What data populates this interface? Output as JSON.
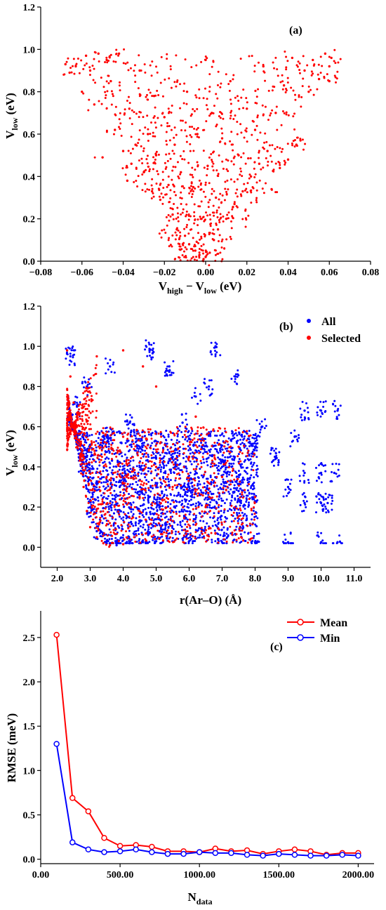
{
  "chart_data": [
    {
      "type": "scatter",
      "panel_label": "(a)",
      "xlabel": {
        "main": "V",
        "sub1": "high",
        "mid": " − V",
        "sub2": "low",
        "unit": " (eV)"
      },
      "ylabel": {
        "main": "V",
        "sub": "low",
        "unit": " (eV)"
      },
      "xlim": [
        -0.08,
        0.08
      ],
      "ylim": [
        0.0,
        1.2
      ],
      "xticks": [
        -0.08,
        -0.06,
        -0.04,
        -0.02,
        0.0,
        0.02,
        0.04,
        0.06,
        0.08
      ],
      "xtick_labels": [
        "−0.08",
        "−0.06",
        "−0.04",
        "−0.02",
        "0.00",
        "0.02",
        "0.04",
        "0.06",
        "0.08"
      ],
      "yticks": [
        0.0,
        0.2,
        0.4,
        0.6,
        0.8,
        1.0,
        1.2
      ],
      "ytick_labels": [
        "0.0",
        "0.2",
        "0.4",
        "0.6",
        "0.8",
        "1.0",
        "1.2"
      ],
      "series": [
        {
          "color": "#ff0000",
          "points": [
            [
              -0.068,
              0.93
            ],
            [
              -0.066,
              0.89
            ],
            [
              -0.063,
              0.92
            ],
            [
              -0.06,
              0.8
            ],
            [
              -0.058,
              0.97
            ],
            [
              -0.056,
              0.9
            ],
            [
              -0.054,
              0.74
            ],
            [
              -0.052,
              0.98
            ],
            [
              -0.05,
              0.49
            ],
            [
              -0.048,
              0.95
            ],
            [
              -0.046,
              0.85
            ],
            [
              -0.044,
              0.62
            ],
            [
              -0.042,
              0.98
            ],
            [
              -0.04,
              0.52
            ],
            [
              -0.038,
              0.38
            ],
            [
              -0.037,
              0.72
            ],
            [
              -0.036,
              0.46
            ],
            [
              -0.034,
              0.55
            ],
            [
              -0.032,
              0.9
            ],
            [
              -0.03,
              0.42
            ],
            [
              -0.028,
              0.6
            ],
            [
              -0.026,
              0.33
            ],
            [
              -0.025,
              0.78
            ],
            [
              -0.024,
              0.5
            ],
            [
              -0.022,
              0.29
            ],
            [
              -0.02,
              0.68
            ],
            [
              -0.018,
              0.36
            ],
            [
              -0.016,
              0.22
            ],
            [
              -0.015,
              0.55
            ],
            [
              -0.014,
              0.15
            ],
            [
              -0.012,
              0.42
            ],
            [
              -0.01,
              0.12
            ],
            [
              -0.009,
              0.8
            ],
            [
              -0.008,
              0.08
            ],
            [
              -0.006,
              0.35
            ],
            [
              -0.005,
              0.05
            ],
            [
              -0.004,
              0.6
            ],
            [
              -0.003,
              0.03
            ],
            [
              -0.002,
              0.2
            ],
            [
              -0.001,
              0.01
            ],
            [
              0.0,
              0.95
            ],
            [
              0.0,
              0.02
            ],
            [
              0.001,
              0.45
            ],
            [
              0.002,
              0.04
            ],
            [
              0.003,
              0.7
            ],
            [
              0.004,
              0.1
            ],
            [
              0.005,
              0.3
            ],
            [
              0.006,
              0.15
            ],
            [
              0.008,
              0.58
            ],
            [
              0.01,
              0.2
            ],
            [
              0.012,
              0.85
            ],
            [
              0.014,
              0.27
            ],
            [
              0.016,
              0.5
            ],
            [
              0.018,
              0.33
            ],
            [
              0.02,
              0.72
            ],
            [
              0.022,
              0.4
            ],
            [
              0.024,
              0.62
            ],
            [
              0.026,
              0.46
            ],
            [
              0.028,
              0.92
            ],
            [
              0.03,
              0.52
            ],
            [
              0.032,
              0.34
            ],
            [
              0.034,
              0.7
            ],
            [
              0.036,
              0.44
            ],
            [
              0.038,
              0.83
            ],
            [
              0.04,
              0.48
            ],
            [
              0.042,
              0.96
            ],
            [
              0.044,
              0.55
            ],
            [
              0.046,
              0.57
            ],
            [
              0.048,
              0.9
            ],
            [
              0.05,
              0.8
            ],
            [
              0.052,
              0.95
            ],
            [
              0.055,
              0.86
            ],
            [
              0.058,
              0.98
            ],
            [
              0.06,
              0.92
            ],
            [
              0.061,
              0.96
            ],
            [
              0.06,
              0.85
            ]
          ]
        }
      ]
    },
    {
      "type": "scatter",
      "panel_label": "(b)",
      "xlabel": {
        "text": "r(Ar–O) (Å)"
      },
      "ylabel": {
        "main": "V",
        "sub": "low",
        "unit": " (eV)"
      },
      "xlim": [
        1.5,
        11.5
      ],
      "ylim": [
        -0.1,
        1.2
      ],
      "xticks": [
        2.0,
        3.0,
        4.0,
        5.0,
        6.0,
        7.0,
        8.0,
        9.0,
        10.0,
        11.0
      ],
      "xtick_labels": [
        "2.0",
        "3.0",
        "4.0",
        "5.0",
        "6.0",
        "7.0",
        "8.0",
        "9.0",
        "10.0",
        "11.0"
      ],
      "yticks": [
        0.0,
        0.2,
        0.4,
        0.6,
        0.8,
        1.0,
        1.2
      ],
      "ytick_labels": [
        "0.0",
        "0.2",
        "0.4",
        "0.6",
        "0.8",
        "1.0",
        "1.2"
      ],
      "legend_position": "top-right",
      "series": [
        {
          "name": "All",
          "color": "#0000ff",
          "points": [
            [
              2.4,
              0.95
            ],
            [
              2.6,
              0.7
            ],
            [
              2.8,
              0.42
            ],
            [
              3.0,
              0.2
            ],
            [
              3.2,
              0.08
            ],
            [
              3.5,
              0.03
            ],
            [
              3.8,
              0.01
            ],
            [
              4.2,
              0.02
            ],
            [
              4.6,
              0.025
            ],
            [
              5.0,
              0.03
            ],
            [
              6.0,
              0.03
            ],
            [
              7.0,
              0.025
            ],
            [
              8.0,
              0.025
            ],
            [
              9.0,
              0.025
            ],
            [
              10.0,
              0.025
            ],
            [
              10.5,
              0.025
            ],
            [
              3.5,
              0.55
            ],
            [
              4.0,
              0.35
            ],
            [
              4.5,
              0.5
            ],
            [
              5.0,
              0.22
            ],
            [
              5.5,
              0.45
            ],
            [
              6.0,
              0.3
            ],
            [
              6.5,
              0.52
            ],
            [
              7.0,
              0.4
            ],
            [
              7.5,
              0.28
            ],
            [
              8.0,
              0.5
            ],
            [
              6.8,
              1.0
            ],
            [
              6.6,
              0.8
            ],
            [
              7.4,
              0.85
            ],
            [
              8.2,
              0.6
            ],
            [
              8.6,
              0.45
            ],
            [
              9.0,
              0.3
            ],
            [
              9.2,
              0.55
            ],
            [
              9.5,
              0.68
            ],
            [
              10.0,
              0.68
            ],
            [
              10.5,
              0.68
            ],
            [
              9.5,
              0.37
            ],
            [
              10.0,
              0.37
            ],
            [
              10.4,
              0.37
            ],
            [
              9.5,
              0.22
            ],
            [
              10.0,
              0.22
            ],
            [
              10.2,
              0.22
            ],
            [
              4.8,
              0.98
            ],
            [
              5.4,
              0.9
            ],
            [
              6.2,
              0.75
            ],
            [
              5.8,
              0.62
            ],
            [
              4.2,
              0.62
            ],
            [
              3.6,
              0.9
            ],
            [
              2.9,
              0.8
            ]
          ]
        },
        {
          "name": "Selected",
          "color": "#ff0000",
          "points": [
            [
              2.3,
              0.98
            ],
            [
              2.4,
              0.85
            ],
            [
              2.5,
              0.72
            ],
            [
              2.6,
              0.6
            ],
            [
              2.7,
              0.45
            ],
            [
              2.8,
              0.3
            ],
            [
              2.9,
              0.18
            ],
            [
              3.0,
              0.1
            ],
            [
              3.2,
              0.05
            ],
            [
              3.4,
              0.02
            ],
            [
              3.6,
              0.01
            ],
            [
              4.0,
              0.015
            ],
            [
              3.0,
              0.5
            ],
            [
              3.5,
              0.35
            ],
            [
              4.0,
              0.55
            ],
            [
              4.5,
              0.25
            ],
            [
              5.0,
              0.4
            ],
            [
              5.5,
              0.3
            ],
            [
              6.0,
              0.45
            ],
            [
              6.5,
              0.2
            ],
            [
              7.0,
              0.35
            ],
            [
              7.5,
              0.5
            ],
            [
              8.0,
              0.25
            ],
            [
              3.2,
              0.95
            ],
            [
              4.0,
              0.98
            ],
            [
              4.6,
              0.9
            ],
            [
              5.0,
              0.8
            ],
            [
              6.2,
              0.65
            ]
          ]
        }
      ]
    },
    {
      "type": "line",
      "panel_label": "(c)",
      "xlabel": {
        "main": "N",
        "sub": "data"
      },
      "ylabel": {
        "text": "RMSE (meV)"
      },
      "xlim": [
        0,
        2100
      ],
      "ylim": [
        -0.05,
        2.8
      ],
      "xticks": [
        0,
        500,
        1000,
        1500,
        2000
      ],
      "xtick_labels": [
        "0.00",
        "500.00",
        "1000.00",
        "1500.00",
        "2000.00"
      ],
      "yticks": [
        0.0,
        0.5,
        1.0,
        1.5,
        2.0,
        2.5
      ],
      "ytick_labels": [
        "0.0",
        "0.5",
        "1.0",
        "1.5",
        "2.0",
        "2.5"
      ],
      "legend_position": "top-right",
      "x": [
        100,
        200,
        300,
        400,
        500,
        600,
        700,
        800,
        900,
        1000,
        1100,
        1200,
        1300,
        1400,
        1500,
        1600,
        1700,
        1800,
        1900,
        2000
      ],
      "series": [
        {
          "name": "Mean",
          "color": "#ff0000",
          "values": [
            2.53,
            0.69,
            0.54,
            0.24,
            0.15,
            0.16,
            0.14,
            0.09,
            0.09,
            0.08,
            0.12,
            0.09,
            0.1,
            0.06,
            0.09,
            0.11,
            0.09,
            0.05,
            0.07,
            0.07
          ]
        },
        {
          "name": "Min",
          "color": "#0000ff",
          "values": [
            1.3,
            0.19,
            0.11,
            0.08,
            0.09,
            0.11,
            0.08,
            0.06,
            0.06,
            0.08,
            0.07,
            0.07,
            0.05,
            0.04,
            0.06,
            0.05,
            0.04,
            0.04,
            0.05,
            0.04
          ]
        }
      ]
    }
  ]
}
